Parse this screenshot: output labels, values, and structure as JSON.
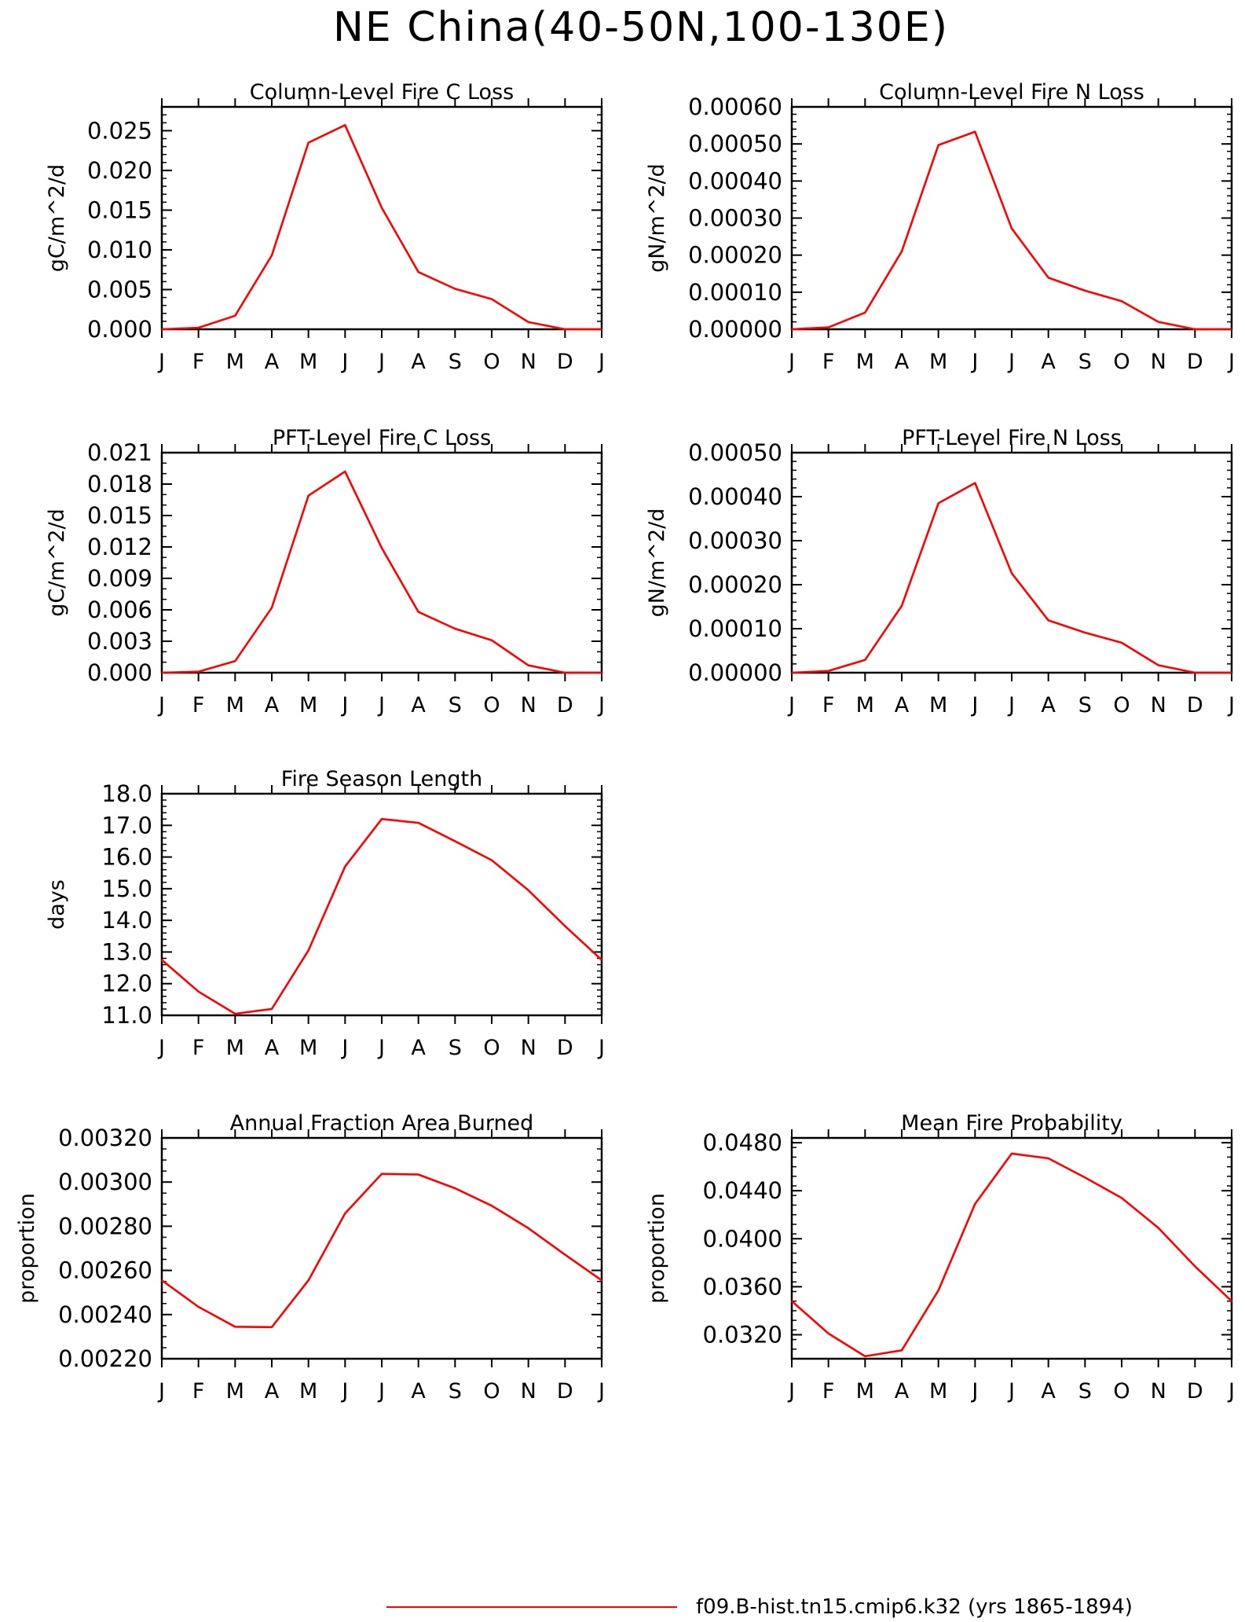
{
  "page": {
    "title": "NE China(40-50N,100-130E)",
    "legend": {
      "color": "#ff0000",
      "label": "f09.B-hist.tn15.cmip6.k32 (yrs 1865-1894)"
    }
  },
  "chart_data": [
    {
      "type": "line",
      "title": "Column-Level Fire C Loss",
      "ylabel": "gC/m^2/d",
      "categories": [
        "J",
        "F",
        "M",
        "A",
        "M",
        "J",
        "J",
        "A",
        "S",
        "O",
        "N",
        "D",
        "J"
      ],
      "ylim": [
        0,
        0.028
      ],
      "yticks": [
        0.0,
        0.005,
        0.01,
        0.015,
        0.02,
        0.025
      ],
      "yticklabels": [
        "0.000",
        "0.005",
        "0.010",
        "0.015",
        "0.020",
        "0.025"
      ],
      "yminor": 0.001,
      "series": [
        {
          "values": [
            0.0,
            0.0002,
            0.0017,
            0.0093,
            0.0235,
            0.0257,
            0.0153,
            0.0072,
            0.0051,
            0.0038,
            0.0009,
            0.0,
            0.0
          ],
          "color": "#ff0000"
        }
      ]
    },
    {
      "type": "line",
      "title": "Column-Level Fire N Loss",
      "ylabel": "gN/m^2/d",
      "categories": [
        "J",
        "F",
        "M",
        "A",
        "M",
        "J",
        "J",
        "A",
        "S",
        "O",
        "N",
        "D",
        "J"
      ],
      "ylim": [
        0,
        0.0006
      ],
      "yticks": [
        0.0,
        0.0001,
        0.0002,
        0.0003,
        0.0004,
        0.0005,
        0.0006
      ],
      "yticklabels": [
        "0.00000",
        "0.00010",
        "0.00020",
        "0.00030",
        "0.00040",
        "0.00050",
        "0.00060"
      ],
      "yminor": 2e-05,
      "series": [
        {
          "values": [
            0.0,
            5e-06,
            4.5e-05,
            0.00021,
            0.000497,
            0.000533,
            0.000272,
            0.000139,
            0.000104,
            7.6e-05,
            2e-05,
            0.0,
            0.0
          ],
          "color": "#ff0000"
        }
      ]
    },
    {
      "type": "line",
      "title": "PFT-Level Fire C Loss",
      "ylabel": "gC/m^2/d",
      "categories": [
        "J",
        "F",
        "M",
        "A",
        "M",
        "J",
        "J",
        "A",
        "S",
        "O",
        "N",
        "D",
        "J"
      ],
      "ylim": [
        0,
        0.021
      ],
      "yticks": [
        0.0,
        0.003,
        0.006,
        0.009,
        0.012,
        0.015,
        0.018,
        0.021
      ],
      "yticklabels": [
        "0.000",
        "0.003",
        "0.006",
        "0.009",
        "0.012",
        "0.015",
        "0.018",
        "0.021"
      ],
      "yminor": 0.001,
      "series": [
        {
          "values": [
            0.0,
            0.0001,
            0.0011,
            0.0062,
            0.0169,
            0.0192,
            0.0119,
            0.0058,
            0.0042,
            0.0031,
            0.0007,
            0.0,
            0.0
          ],
          "color": "#ff0000"
        }
      ]
    },
    {
      "type": "line",
      "title": "PFT-Level Fire N Loss",
      "ylabel": "gN/m^2/d",
      "categories": [
        "J",
        "F",
        "M",
        "A",
        "M",
        "J",
        "J",
        "A",
        "S",
        "O",
        "N",
        "D",
        "J"
      ],
      "ylim": [
        0,
        0.0005
      ],
      "yticks": [
        0.0,
        0.0001,
        0.0002,
        0.0003,
        0.0004,
        0.0005
      ],
      "yticklabels": [
        "0.00000",
        "0.00010",
        "0.00020",
        "0.00030",
        "0.00040",
        "0.00050"
      ],
      "yminor": 2e-05,
      "series": [
        {
          "values": [
            0.0,
            4e-06,
            2.9e-05,
            0.000152,
            0.000385,
            0.000431,
            0.000226,
            0.000119,
            9.1e-05,
            6.8e-05,
            1.7e-05,
            0.0,
            0.0
          ],
          "color": "#ff0000"
        }
      ]
    },
    {
      "type": "line",
      "title": "Fire Season Length",
      "ylabel": "days",
      "categories": [
        "J",
        "F",
        "M",
        "A",
        "M",
        "J",
        "J",
        "A",
        "S",
        "O",
        "N",
        "D",
        "J"
      ],
      "ylim": [
        11,
        18
      ],
      "yticks": [
        11,
        12,
        13,
        14,
        15,
        16,
        17,
        18
      ],
      "yticklabels": [
        "11.0",
        "12.0",
        "13.0",
        "14.0",
        "15.0",
        "16.0",
        "17.0",
        "18.0"
      ],
      "yminor": 0.2,
      "series": [
        {
          "values": [
            12.75,
            11.75,
            11.05,
            11.2,
            13.05,
            15.7,
            17.2,
            17.08,
            16.5,
            15.9,
            14.95,
            13.82,
            12.75
          ],
          "color": "#ff0000"
        }
      ]
    },
    {
      "type": "line",
      "title": "Annual Fraction Area Burned",
      "ylabel": "proportion",
      "categories": [
        "J",
        "F",
        "M",
        "A",
        "M",
        "J",
        "J",
        "A",
        "S",
        "O",
        "N",
        "D",
        "J"
      ],
      "ylim": [
        0.0022,
        0.0032
      ],
      "yticks": [
        0.0022,
        0.0024,
        0.0026,
        0.0028,
        0.003,
        0.0032
      ],
      "yticklabels": [
        "0.00220",
        "0.00240",
        "0.00260",
        "0.00280",
        "0.00300",
        "0.00320"
      ],
      "yminor": 5e-05,
      "series": [
        {
          "values": [
            0.002555,
            0.002435,
            0.002345,
            0.002343,
            0.002555,
            0.002858,
            0.003037,
            0.003034,
            0.002972,
            0.002893,
            0.002791,
            0.002671,
            0.002555
          ],
          "color": "#ff0000"
        }
      ]
    },
    {
      "type": "line",
      "title": "Mean Fire Probability",
      "ylabel": "proportion",
      "categories": [
        "J",
        "F",
        "M",
        "A",
        "M",
        "J",
        "J",
        "A",
        "S",
        "O",
        "N",
        "D",
        "J"
      ],
      "ylim": [
        0.03,
        0.0484
      ],
      "yticks": [
        0.032,
        0.036,
        0.04,
        0.044,
        0.048
      ],
      "yticklabels": [
        "0.0320",
        "0.0360",
        "0.0400",
        "0.0440",
        "0.0480"
      ],
      "yminor": 0.0008,
      "series": [
        {
          "values": [
            0.0348,
            0.0321,
            0.0302,
            0.0307,
            0.0357,
            0.0429,
            0.0471,
            0.0467,
            0.0451,
            0.0434,
            0.0409,
            0.0377,
            0.0348
          ],
          "color": "#ff0000"
        }
      ]
    }
  ]
}
